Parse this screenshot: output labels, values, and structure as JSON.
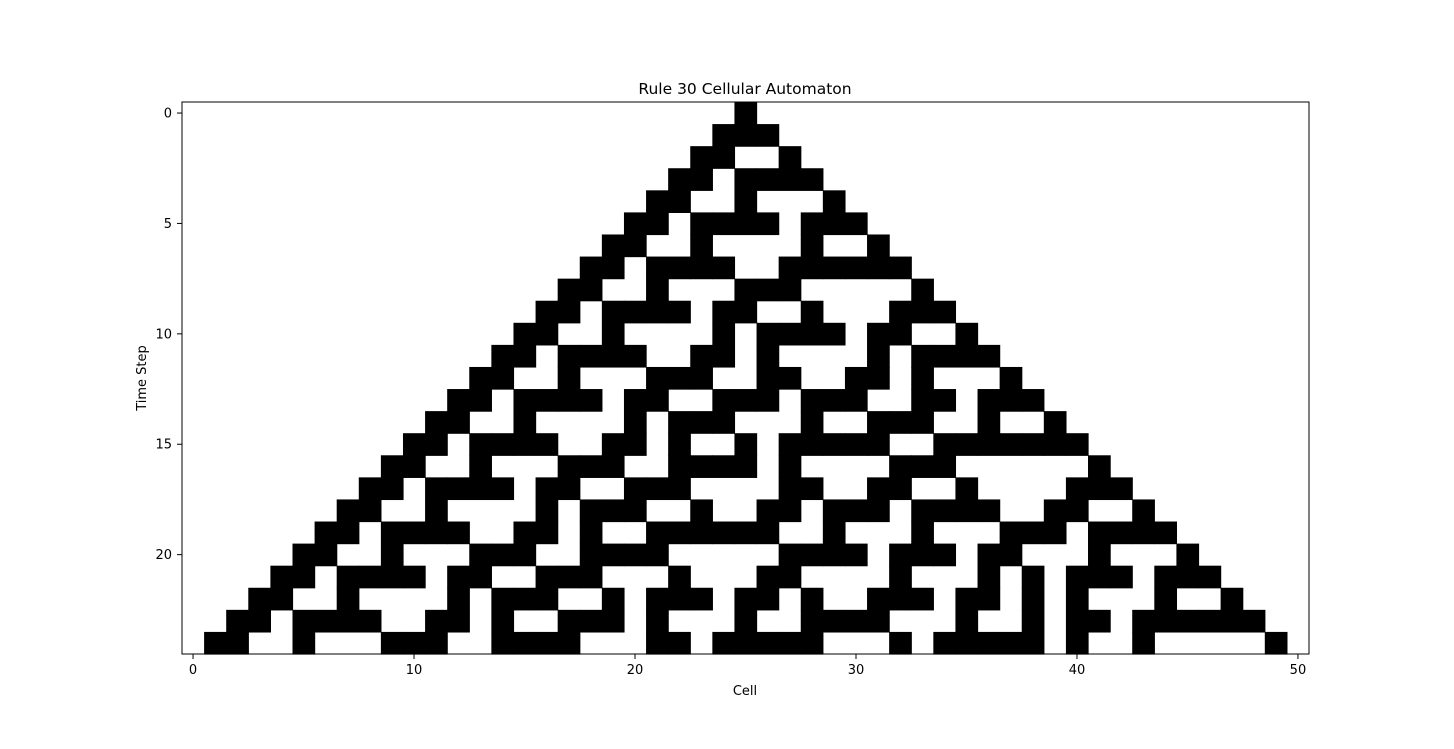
{
  "chart_data": {
    "type": "heatmap",
    "title": "Rule 30 Cellular Automaton",
    "xlabel": "Cell",
    "ylabel": "Time Step",
    "width_cells": 51,
    "steps": 25,
    "rule": 30,
    "initial_live_cell": 25,
    "colormap": {
      "1": "#000000",
      "0": "#ffffff"
    },
    "xticks": [
      0,
      10,
      20,
      30,
      40,
      50
    ],
    "yticks": [
      0,
      5,
      10,
      15,
      20
    ],
    "grid": false
  }
}
